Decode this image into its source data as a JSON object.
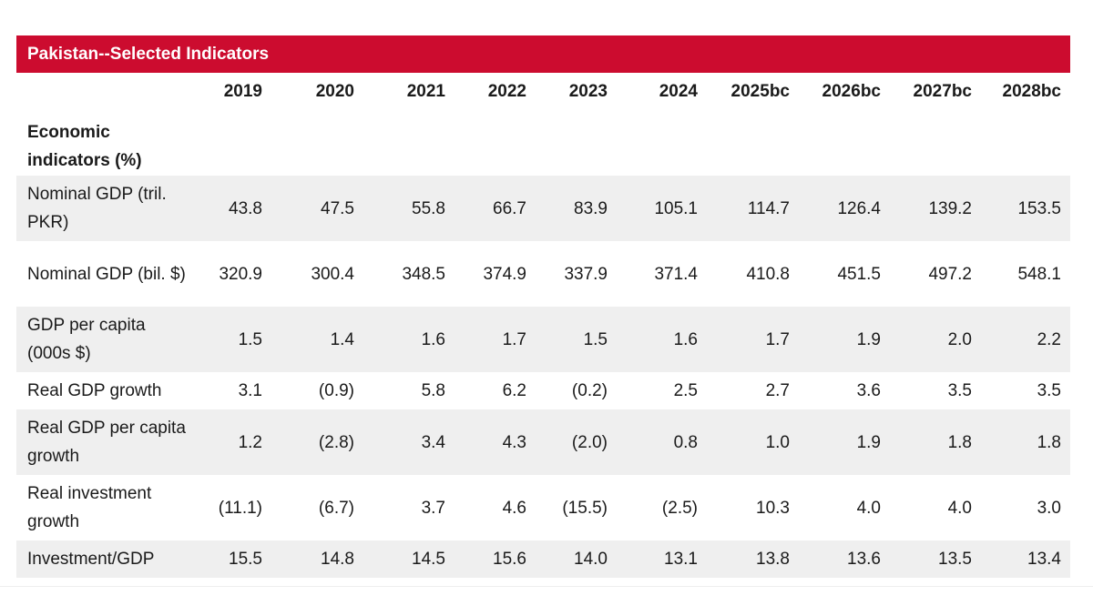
{
  "title": "Pakistan--Selected Indicators",
  "years": [
    "2019",
    "2020",
    "2021",
    "2022",
    "2023",
    "2024",
    "2025bc",
    "2026bc",
    "2027bc",
    "2028bc"
  ],
  "section_label": "Economic indicators (%)",
  "rows": [
    {
      "label": "Nominal GDP (tril. PKR)",
      "values": [
        "43.8",
        "47.5",
        "55.8",
        "66.7",
        "83.9",
        "105.1",
        "114.7",
        "126.4",
        "139.2",
        "153.5"
      ]
    },
    {
      "label": "Nominal GDP (bil. $)",
      "values": [
        "320.9",
        "300.4",
        "348.5",
        "374.9",
        "337.9",
        "371.4",
        "410.8",
        "451.5",
        "497.2",
        "548.1"
      ]
    },
    {
      "label": "GDP per capita (000s $)",
      "values": [
        "1.5",
        "1.4",
        "1.6",
        "1.7",
        "1.5",
        "1.6",
        "1.7",
        "1.9",
        "2.0",
        "2.2"
      ]
    },
    {
      "label": "Real GDP growth",
      "values": [
        "3.1",
        "(0.9)",
        "5.8",
        "6.2",
        "(0.2)",
        "2.5",
        "2.7",
        "3.6",
        "3.5",
        "3.5"
      ]
    },
    {
      "label": "Real GDP per capita growth",
      "values": [
        "1.2",
        "(2.8)",
        "3.4",
        "4.3",
        "(2.0)",
        "0.8",
        "1.0",
        "1.9",
        "1.8",
        "1.8"
      ]
    },
    {
      "label": "Real investment growth",
      "values": [
        "(11.1)",
        "(6.7)",
        "3.7",
        "4.6",
        "(15.5)",
        "(2.5)",
        "10.3",
        "4.0",
        "4.0",
        "3.0"
      ]
    },
    {
      "label": "Investment/GDP",
      "values": [
        "15.5",
        "14.8",
        "14.5",
        "15.6",
        "14.0",
        "13.1",
        "13.8",
        "13.6",
        "13.5",
        "13.4"
      ]
    }
  ],
  "colors": {
    "title_bar": "#cc0c2f",
    "row_shade": "#efefef"
  }
}
